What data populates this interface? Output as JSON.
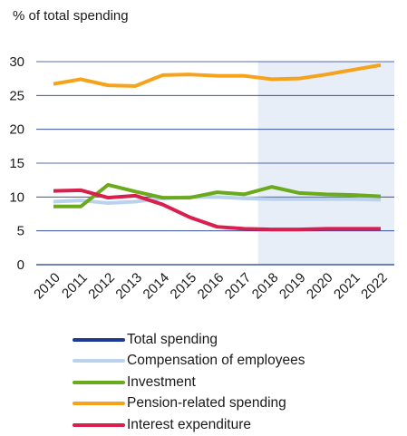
{
  "chart_data": {
    "type": "line",
    "title": "",
    "ylabel": "% of total spending",
    "xlabel": "",
    "categories": [
      "2010",
      "2011",
      "2012",
      "2013",
      "2014",
      "2015",
      "2016",
      "2017",
      "2018",
      "2019",
      "2020",
      "2021",
      "2022"
    ],
    "ylim": [
      0,
      30
    ],
    "yticks": [
      0,
      5,
      10,
      15,
      20,
      25,
      30
    ],
    "grid": true,
    "projection_shading": {
      "from": "2018",
      "to": "2022",
      "color": "#e8eef8"
    },
    "legend_position": "bottom",
    "series": [
      {
        "name": "Total spending",
        "color": "#1f3a93",
        "values": [
          null,
          null,
          null,
          null,
          null,
          null,
          null,
          null,
          null,
          null,
          null,
          null,
          null
        ]
      },
      {
        "name": "Compensation of employees",
        "color": "#b9d3ee",
        "values": [
          9.3,
          9.5,
          9.1,
          9.3,
          9.8,
          10.0,
          10.0,
          9.8,
          9.7,
          9.7,
          9.7,
          9.7,
          9.6
        ]
      },
      {
        "name": "Investment",
        "color": "#6aaa1c",
        "values": [
          8.6,
          8.6,
          11.8,
          10.8,
          9.9,
          9.9,
          10.7,
          10.4,
          11.5,
          10.6,
          10.4,
          10.3,
          10.1
        ]
      },
      {
        "name": "Pension-related spending",
        "color": "#f7a21b",
        "values": [
          26.7,
          27.4,
          26.5,
          26.4,
          28.0,
          28.1,
          27.9,
          27.9,
          27.4,
          27.5,
          28.1,
          28.8,
          29.5
        ]
      },
      {
        "name": "Interest expenditure",
        "color": "#d81f4e",
        "values": [
          10.9,
          11.0,
          9.9,
          10.2,
          8.9,
          7.0,
          5.6,
          5.3,
          5.2,
          5.2,
          5.3,
          5.3,
          5.3
        ]
      }
    ]
  }
}
